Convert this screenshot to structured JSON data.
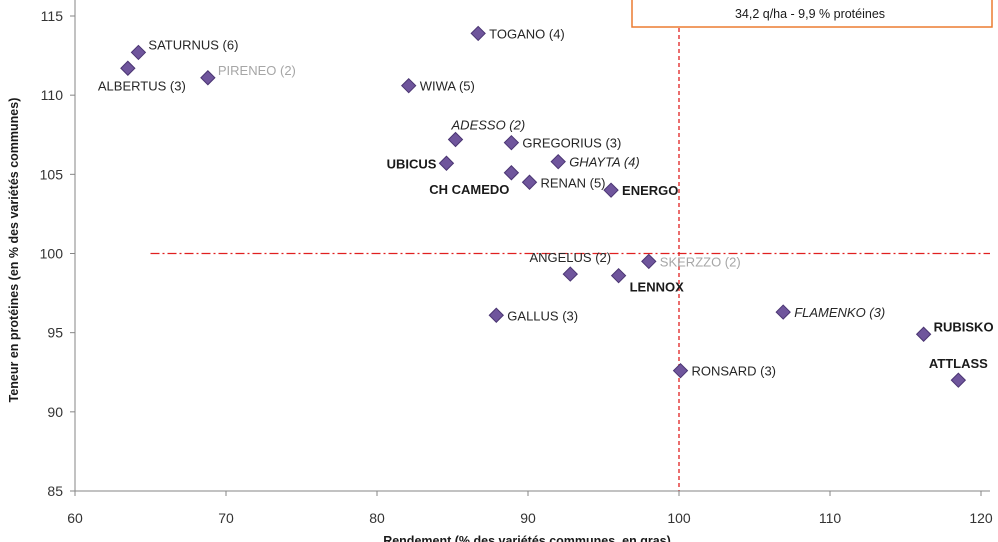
{
  "chart_data": {
    "type": "scatter",
    "xlabel": "Rendement (% des variétés communes, en gras)",
    "ylabel": "Teneur en protéines (en % des variétés communes)",
    "xlim": [
      60,
      120
    ],
    "ylim": [
      85,
      115
    ],
    "xticks": [
      60,
      70,
      80,
      90,
      100,
      110,
      120
    ],
    "yticks": [
      85,
      90,
      95,
      100,
      105,
      110,
      115
    ],
    "grid": false,
    "marker_shape": "diamond",
    "marker_color": "#6f559c",
    "marker_stroke": "#4a3572",
    "label_colors": {
      "normal": "#262626",
      "bold": "#1a1a1a",
      "italic": "#262626",
      "gray": "#a6a6a6"
    },
    "points": [
      {
        "label": "SATURNUS (6)",
        "x": 64.2,
        "y": 112.7,
        "style": "normal",
        "placement": "right-above"
      },
      {
        "label": "ALBERTUS (3)",
        "x": 63.5,
        "y": 111.7,
        "style": "normal",
        "placement": "below"
      },
      {
        "label": "PIRENEO (2)",
        "x": 68.8,
        "y": 111.1,
        "style": "gray",
        "placement": "right-above"
      },
      {
        "label": "TOGANO (4)",
        "x": 86.7,
        "y": 113.9,
        "style": "normal",
        "placement": "right"
      },
      {
        "label": "WIWA (5)",
        "x": 82.1,
        "y": 110.6,
        "style": "normal",
        "placement": "right"
      },
      {
        "label": "ADESSO (2)",
        "x": 85.2,
        "y": 107.2,
        "style": "italic",
        "placement": "above-right"
      },
      {
        "label": "GREGORIUS (3)",
        "x": 88.9,
        "y": 107.0,
        "style": "normal",
        "placement": "right"
      },
      {
        "label": "UBICUS",
        "x": 84.6,
        "y": 105.7,
        "style": "bold",
        "placement": "left"
      },
      {
        "label": "GHAYTA (4)",
        "x": 92.0,
        "y": 105.8,
        "style": "italic",
        "placement": "right"
      },
      {
        "label": "CH CAMEDO",
        "x": 88.9,
        "y": 105.1,
        "style": "bold",
        "placement": "below-left"
      },
      {
        "label": "RENAN (5)",
        "x": 90.1,
        "y": 104.5,
        "style": "normal",
        "placement": "right"
      },
      {
        "label": "ENERGO",
        "x": 95.5,
        "y": 104.0,
        "style": "bold",
        "placement": "right"
      },
      {
        "label": "ANGELUS (2)",
        "x": 92.8,
        "y": 98.7,
        "style": "normal",
        "placement": "above"
      },
      {
        "label": "LENNOX",
        "x": 96.0,
        "y": 98.6,
        "style": "bold",
        "placement": "below-right"
      },
      {
        "label": "SKERZZO (2)",
        "x": 98.0,
        "y": 99.5,
        "style": "gray",
        "placement": "right"
      },
      {
        "label": "GALLUS (3)",
        "x": 87.9,
        "y": 96.1,
        "style": "normal",
        "placement": "right"
      },
      {
        "label": "FLAMENKO (3)",
        "x": 106.9,
        "y": 96.3,
        "style": "italic",
        "placement": "right"
      },
      {
        "label": "RUBISKO",
        "x": 116.2,
        "y": 94.9,
        "style": "bold",
        "placement": "right-above"
      },
      {
        "label": "RONSARD (3)",
        "x": 100.1,
        "y": 92.6,
        "style": "normal",
        "placement": "right"
      },
      {
        "label": "ATTLASS",
        "x": 118.5,
        "y": 92.0,
        "style": "bold",
        "placement": "above"
      }
    ],
    "reference_lines": [
      {
        "orientation": "vertical",
        "value": 100,
        "style": "dashed",
        "color": "#e02020"
      },
      {
        "orientation": "horizontal",
        "value": 100,
        "from": 65,
        "style": "dash-dot",
        "color": "#e02020"
      }
    ],
    "annotations": [
      "34,2 q/ha  -  9,9 % protéines"
    ],
    "annotation_border_color": "#ec7c30"
  }
}
